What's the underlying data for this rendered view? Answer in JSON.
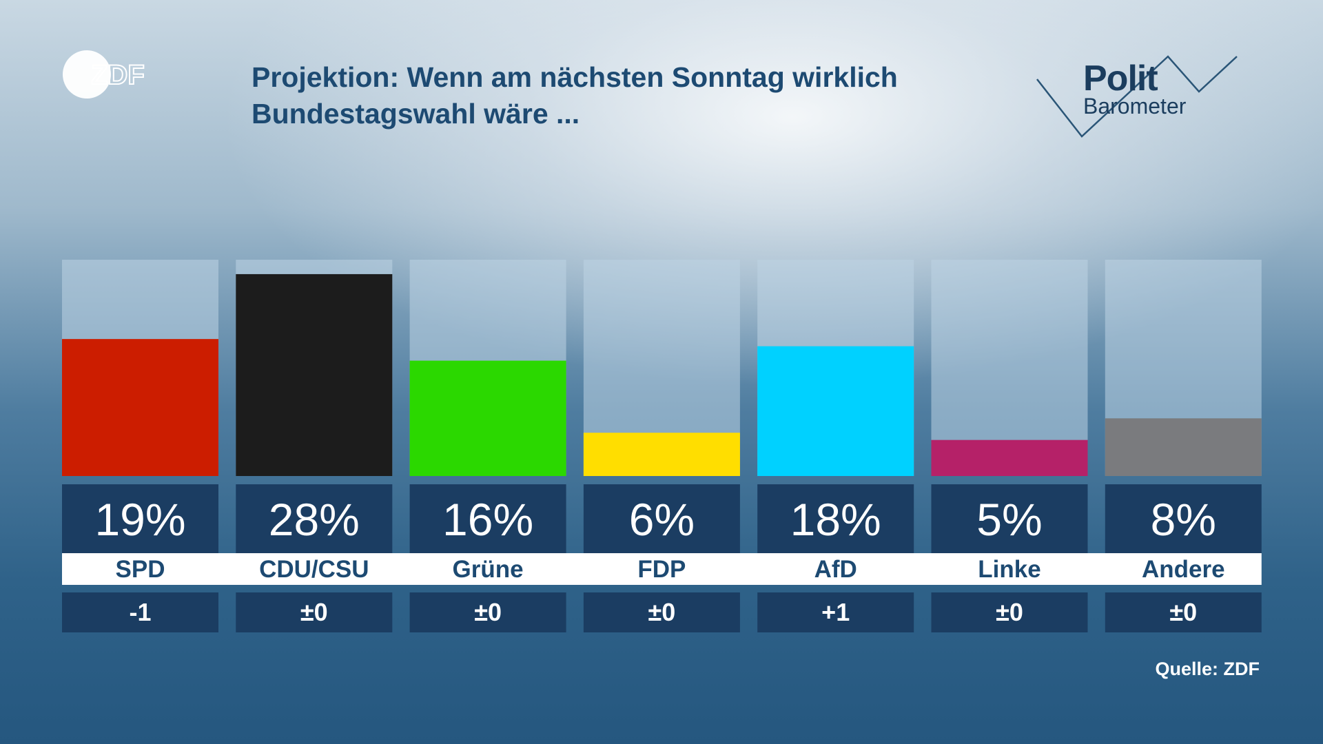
{
  "header": {
    "title_line1": "Projektion: Wenn am nächsten Sonntag wirklich",
    "title_line2": "Bundestagswahl wäre ...",
    "channel_logo": "ZDF",
    "brand_word1": "Polit",
    "brand_word2": "Barometer"
  },
  "footer": {
    "source": "Quelle: ZDF"
  },
  "colors": {
    "title": "#1d4a72",
    "value_box": "#1b3d62",
    "label_bg": "#ffffff",
    "label_text": "#1d4a72",
    "change_box": "#1b3d62",
    "bar_track": "rgba(190,212,228,0.55)"
  },
  "chart_data": {
    "type": "bar",
    "title": "Projektion: Wenn am nächsten Sonntag wirklich Bundestagswahl wäre ...",
    "ylim": [
      0,
      30
    ],
    "grid": false,
    "legend": "none",
    "categories": [
      "SPD",
      "CDU/CSU",
      "Grüne",
      "FDP",
      "AfD",
      "Linke",
      "Andere"
    ],
    "values": [
      19,
      28,
      16,
      6,
      18,
      5,
      8
    ],
    "value_labels": [
      "19%",
      "28%",
      "16%",
      "6%",
      "18%",
      "5%",
      "8%"
    ],
    "changes": [
      "-1",
      "±0",
      "±0",
      "±0",
      "+1",
      "±0",
      "±0"
    ],
    "bar_colors": [
      "#cc1d00",
      "#1c1c1c",
      "#2bd800",
      "#ffde00",
      "#00d1ff",
      "#b52168",
      "#7a7b7e"
    ]
  }
}
